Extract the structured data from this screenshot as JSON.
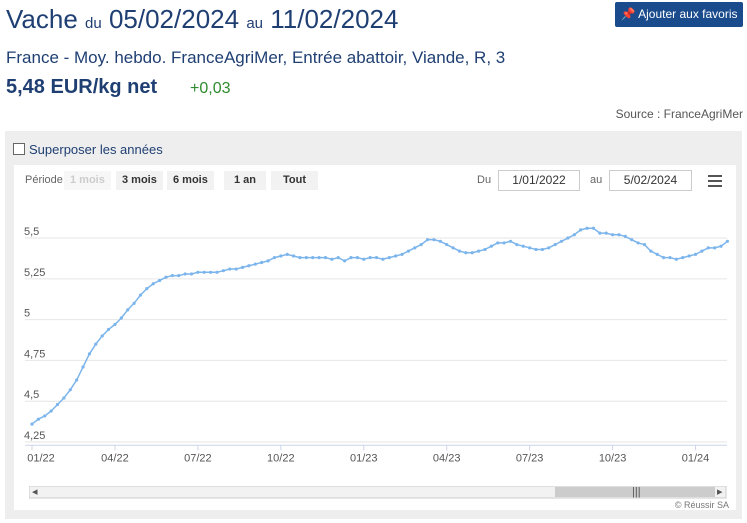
{
  "header": {
    "title": "Vache",
    "from_label": "du",
    "from": "05/02/2024",
    "to_label": "au",
    "to": "11/02/2024",
    "favorite_button": "Ajouter aux favoris",
    "subtitle": "France - Moy. hebdo. FranceAgriMer, Entrée abattoir, Viande, R, 3",
    "price": "5,48 EUR/kg net",
    "change": "+0,03",
    "source": "Source : FranceAgriMer"
  },
  "controls": {
    "overlay_years": "Superposer les années",
    "period_label": "Période",
    "periods": [
      "1 mois",
      "3 mois",
      "6 mois",
      "1 an",
      "Tout"
    ],
    "from_label": "Du",
    "from": "1/01/2022",
    "to_label": "au",
    "to": "5/02/2024"
  },
  "credit": "© Réussir SA",
  "chart_data": {
    "type": "line",
    "color": "#7cb5ec",
    "grid": true,
    "categories": [
      "01/22",
      null,
      null,
      null,
      null,
      null,
      null,
      null,
      null,
      null,
      null,
      null,
      null,
      "04/22",
      null,
      null,
      null,
      null,
      null,
      null,
      null,
      null,
      null,
      null,
      null,
      null,
      "07/22",
      null,
      null,
      null,
      null,
      null,
      null,
      null,
      null,
      null,
      null,
      null,
      null,
      "10/22",
      null,
      null,
      null,
      null,
      null,
      null,
      null,
      null,
      null,
      null,
      null,
      null,
      "01/23",
      null,
      null,
      null,
      null,
      null,
      null,
      null,
      null,
      null,
      null,
      null,
      null,
      "04/23",
      null,
      null,
      null,
      null,
      null,
      null,
      null,
      null,
      null,
      null,
      null,
      null,
      "07/23",
      null,
      null,
      null,
      null,
      null,
      null,
      null,
      null,
      null,
      null,
      null,
      null,
      "10/23",
      null,
      null,
      null,
      null,
      null,
      null,
      null,
      null,
      null,
      null,
      null,
      null,
      "01/24",
      null,
      null,
      null,
      null,
      null
    ],
    "values": [
      4.36,
      4.39,
      4.41,
      4.44,
      4.48,
      4.52,
      4.57,
      4.63,
      4.71,
      4.79,
      4.85,
      4.9,
      4.94,
      4.97,
      5.01,
      5.06,
      5.1,
      5.15,
      5.19,
      5.22,
      5.24,
      5.26,
      5.27,
      5.27,
      5.28,
      5.28,
      5.29,
      5.29,
      5.29,
      5.29,
      5.3,
      5.31,
      5.31,
      5.32,
      5.33,
      5.34,
      5.35,
      5.36,
      5.38,
      5.39,
      5.4,
      5.39,
      5.38,
      5.38,
      5.38,
      5.38,
      5.38,
      5.37,
      5.38,
      5.36,
      5.38,
      5.38,
      5.37,
      5.38,
      5.38,
      5.37,
      5.38,
      5.39,
      5.4,
      5.42,
      5.44,
      5.46,
      5.49,
      5.49,
      5.48,
      5.46,
      5.44,
      5.42,
      5.41,
      5.41,
      5.42,
      5.43,
      5.45,
      5.47,
      5.47,
      5.48,
      5.46,
      5.45,
      5.44,
      5.43,
      5.43,
      5.44,
      5.46,
      5.48,
      5.5,
      5.52,
      5.55,
      5.56,
      5.56,
      5.53,
      5.53,
      5.52,
      5.52,
      5.51,
      5.49,
      5.47,
      5.46,
      5.42,
      5.4,
      5.38,
      5.38,
      5.37,
      5.38,
      5.39,
      5.4,
      5.42,
      5.44,
      5.44,
      5.45,
      5.48
    ],
    "ylim": [
      4.23,
      5.73
    ],
    "yticks": [
      {
        "value": 4.25,
        "label": "4,25"
      },
      {
        "value": 4.5,
        "label": "4,5"
      },
      {
        "value": 4.75,
        "label": "4,75"
      },
      5,
      {
        "value": 5.25,
        "label": "5,25"
      },
      {
        "value": 5.5,
        "label": "5,5"
      }
    ]
  }
}
